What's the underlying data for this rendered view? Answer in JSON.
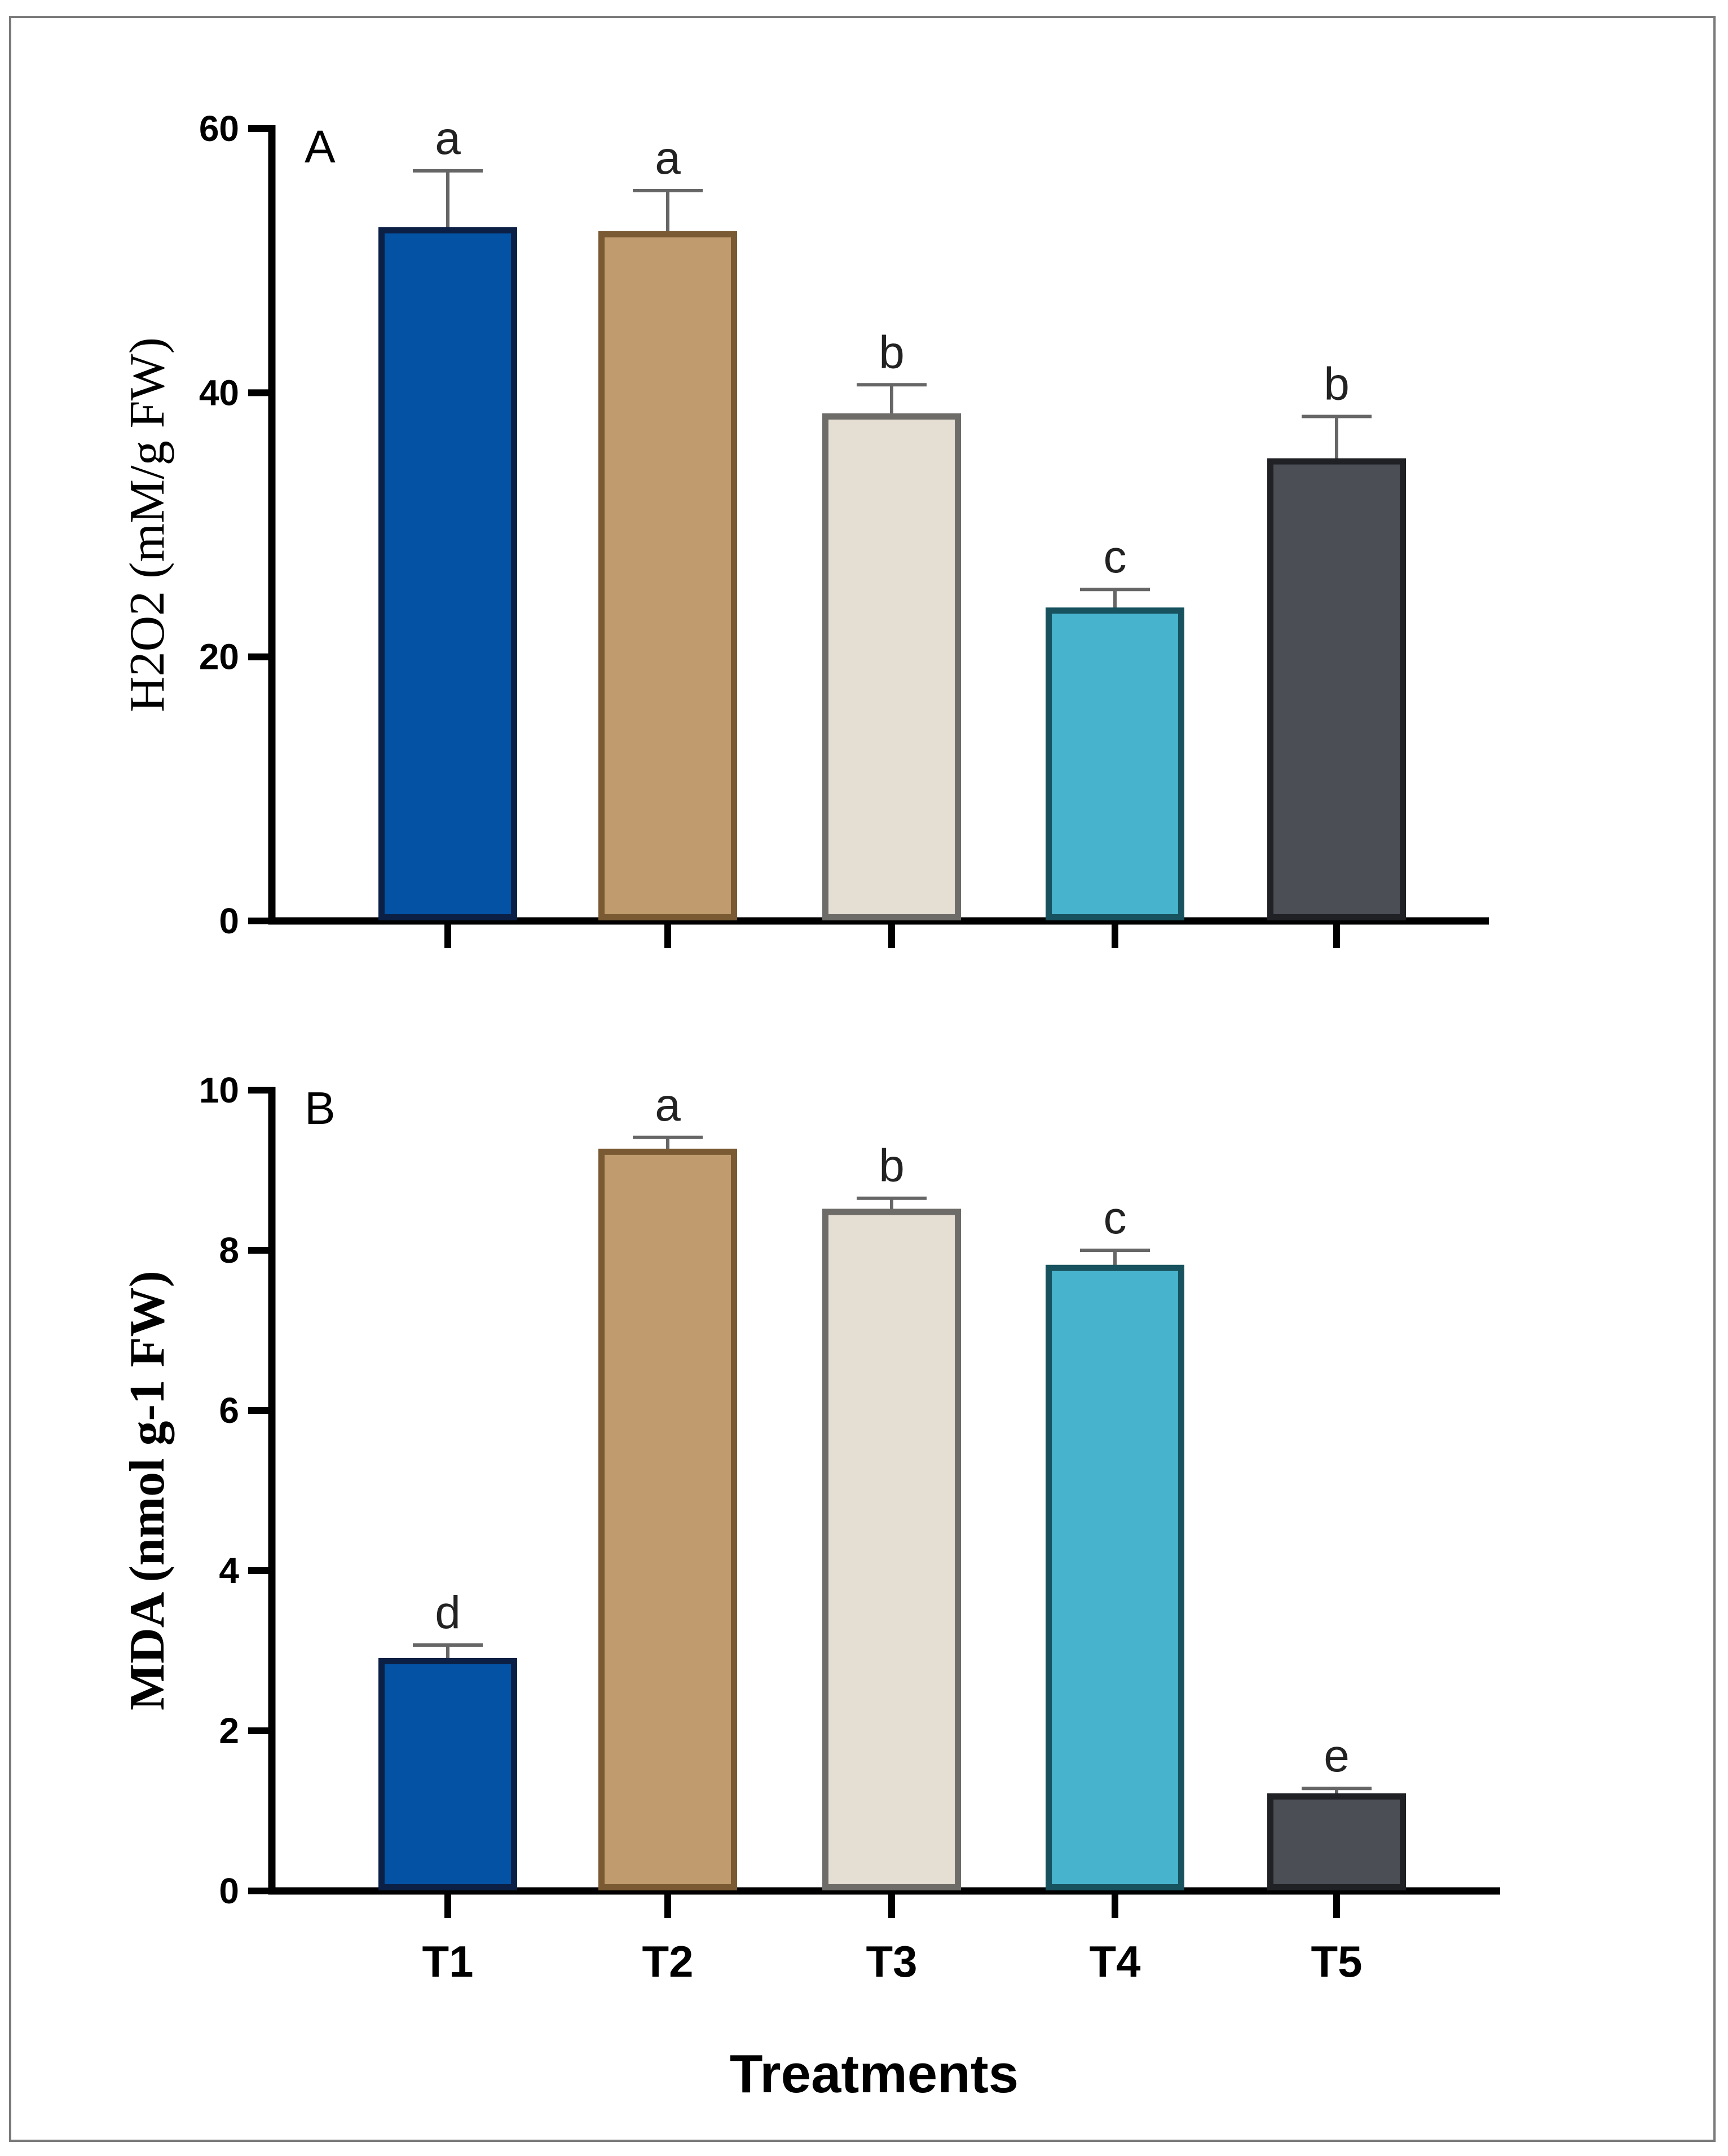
{
  "chart_data": [
    {
      "type": "bar",
      "panel_label": "A",
      "ylabel": "H2O2 (mM/g FW)",
      "xlabel": "",
      "categories": [
        "T1",
        "T2",
        "T3",
        "T4",
        "T5"
      ],
      "values": [
        52.3,
        52.0,
        38.2,
        23.5,
        34.8
      ],
      "errors": [
        4.5,
        3.3,
        2.4,
        1.6,
        3.4
      ],
      "significance": [
        "a",
        "a",
        "b",
        "c",
        "b"
      ],
      "ylim": [
        0,
        60
      ],
      "yticks": [
        0,
        20,
        40,
        60
      ],
      "show_category_labels": false,
      "grid": false
    },
    {
      "type": "bar",
      "panel_label": "B",
      "ylabel": "MDA (nmol g-1 FW)",
      "xlabel": "Treatments",
      "categories": [
        "T1",
        "T2",
        "T3",
        "T4",
        "T5"
      ],
      "values": [
        2.87,
        9.23,
        8.48,
        7.78,
        1.18
      ],
      "errors": [
        0.2,
        0.18,
        0.17,
        0.22,
        0.1
      ],
      "significance": [
        "d",
        "a",
        "b",
        "c",
        "e"
      ],
      "ylim": [
        0,
        10
      ],
      "yticks": [
        0,
        2,
        4,
        6,
        8,
        10
      ],
      "show_category_labels": true,
      "grid": false
    }
  ],
  "colors": {
    "fills": [
      "#0352a3",
      "#c09b6d",
      "#e4ded3",
      "#48b3cc",
      "#4b4e55"
    ],
    "strokes": [
      "#0c2045",
      "#7a5a33",
      "#6e6c68",
      "#17525e",
      "#1f2125"
    ],
    "axis": "#000000",
    "error_bar": "#666666"
  }
}
